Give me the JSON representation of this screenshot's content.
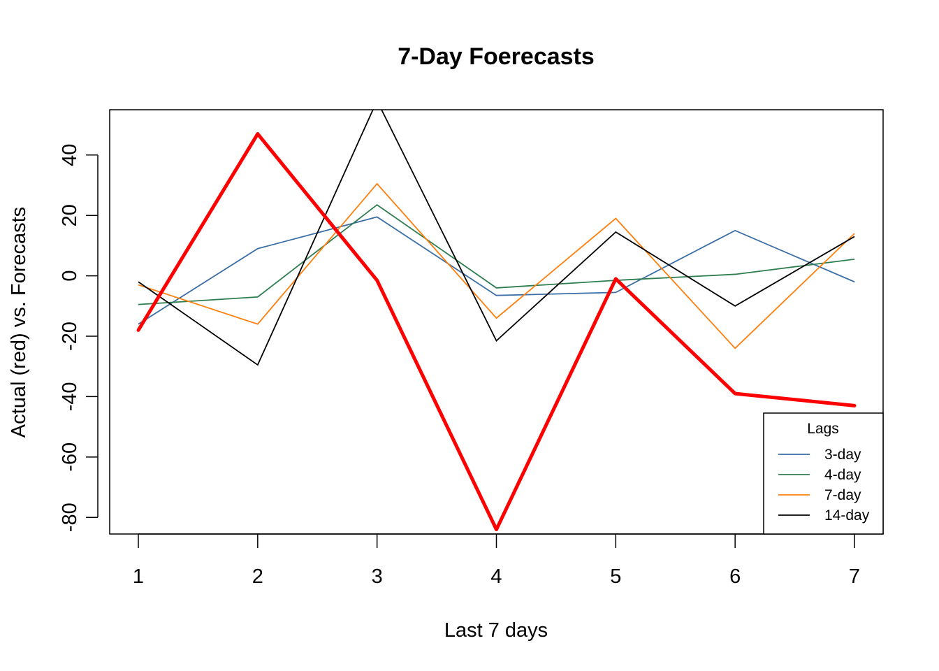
{
  "chart_data": {
    "type": "line",
    "title": "7-Day Foerecasts",
    "xlabel": "Last 7 days",
    "ylabel": "Actual (red) vs. Forecasts",
    "x": [
      1,
      2,
      3,
      4,
      5,
      6,
      7
    ],
    "xlim": [
      0.76,
      7.24
    ],
    "ylim": [
      -85.5,
      55
    ],
    "yticks": [
      -80,
      -60,
      -40,
      -20,
      0,
      20,
      40
    ],
    "grid": false,
    "legend": {
      "title": "Lags",
      "placement": "bottom-right",
      "entries": [
        "3-day",
        "4-day",
        "7-day",
        "14-day"
      ]
    },
    "actual": {
      "color": "#ff0000",
      "values": [
        -18,
        47,
        -1.5,
        -84,
        -1,
        -39,
        -43
      ]
    },
    "series": [
      {
        "name": "3-day",
        "color": "#3a6ea5",
        "values": [
          -16,
          9,
          19.5,
          -6.5,
          -5.5,
          15,
          -2
        ]
      },
      {
        "name": "4-day",
        "color": "#2e7d4f",
        "values": [
          -9.5,
          -7,
          23.5,
          -4,
          -1.5,
          0.5,
          5.5
        ]
      },
      {
        "name": "7-day",
        "color": "#ff7f0e",
        "values": [
          -3,
          -16,
          30.5,
          -14,
          19,
          -24,
          14
        ]
      },
      {
        "name": "14-day",
        "color": "#000000",
        "values": [
          -2,
          -29.5,
          58,
          -21.5,
          14.5,
          -10,
          13
        ]
      }
    ]
  }
}
